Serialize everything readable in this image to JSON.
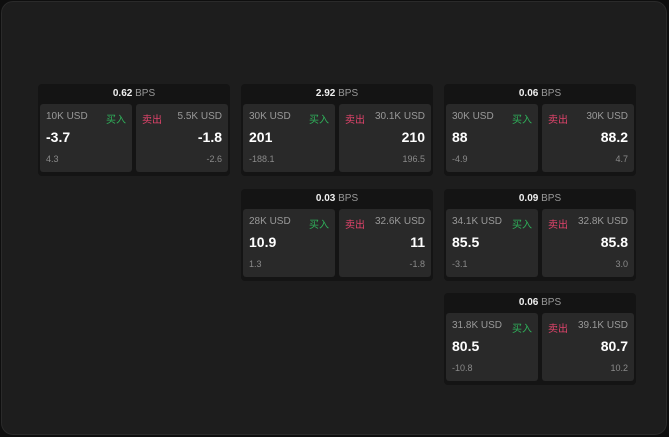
{
  "unit": "BPS",
  "buy_label": "买入",
  "sell_label": "卖出",
  "colors": {
    "buy": "#2fb15a",
    "sell": "#e0436b"
  },
  "quotes": [
    {
      "spread": "0.62",
      "bid_size": "10K USD",
      "bid": "-3.7",
      "bid_change": "4.3",
      "ask_size": "5.5K USD",
      "ask": "-1.8",
      "ask_change": "-2.6"
    },
    {
      "spread": "2.92",
      "bid_size": "30K USD",
      "bid": "201",
      "bid_change": "-188.1",
      "ask_size": "30.1K USD",
      "ask": "210",
      "ask_change": "196.5"
    },
    {
      "spread": "0.06",
      "bid_size": "30K USD",
      "bid": "88",
      "bid_change": "-4.9",
      "ask_size": "30K USD",
      "ask": "88.2",
      "ask_change": "4.7"
    },
    {
      "spread": "0.03",
      "bid_size": "28K USD",
      "bid": "10.9",
      "bid_change": "1.3",
      "ask_size": "32.6K USD",
      "ask": "11",
      "ask_change": "-1.8"
    },
    {
      "spread": "0.09",
      "bid_size": "34.1K USD",
      "bid": "85.5",
      "bid_change": "-3.1",
      "ask_size": "32.8K USD",
      "ask": "85.8",
      "ask_change": "3.0"
    },
    {
      "spread": "0.06",
      "bid_size": "31.8K USD",
      "bid": "80.5",
      "bid_change": "-10.8",
      "ask_size": "39.1K USD",
      "ask": "80.7",
      "ask_change": "10.2"
    }
  ]
}
